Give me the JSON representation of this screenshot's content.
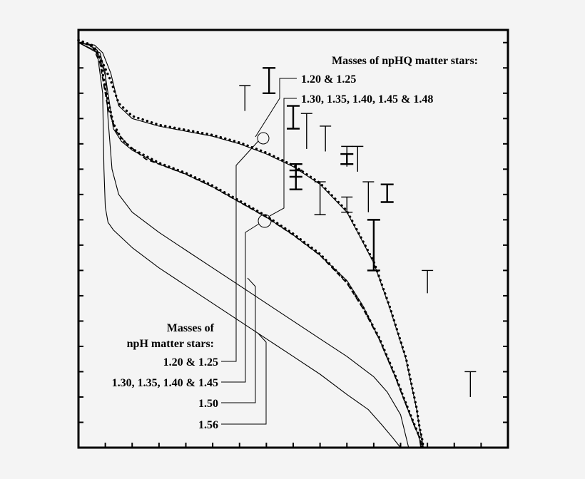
{
  "chart_data": {
    "type": "line",
    "title": "",
    "xlabel": "",
    "ylabel": "",
    "xlim": [
      0,
      16
    ],
    "ylim": [
      0,
      16.5
    ],
    "ticks": {
      "x": [
        1,
        2,
        3,
        4,
        5,
        6,
        7,
        8,
        9,
        10,
        11,
        12,
        13,
        14,
        15,
        16
      ],
      "y": [
        1,
        2,
        3,
        4,
        5,
        6,
        7,
        8,
        9,
        10,
        11,
        12,
        13,
        14,
        15,
        16
      ]
    },
    "grid": false,
    "legend": "none",
    "annotations": {
      "npHQ_title": "Masses of npHQ matter stars:",
      "npHQ_group_1": "1.20 & 1.25",
      "npHQ_group_2": "1.30, 1.35, 1.40, 1.45 & 1.48",
      "npH_title_line1": "Masses of",
      "npH_title_line2": "npH matter stars:",
      "npH_group_1": "1.20 & 1.25",
      "npH_group_2": "1.30, 1.35, 1.40 & 1.45",
      "npH_group_3": "1.50",
      "npH_group_4": "1.56"
    },
    "series": [
      {
        "style": "solid",
        "x": [
          0,
          0.6,
          0.9,
          1.2,
          1.5,
          2,
          3,
          4,
          5,
          6,
          7,
          8,
          9,
          10,
          11,
          11.6,
          12.2,
          12.4,
          12.6,
          12.7,
          12.8,
          12.85
        ],
        "y": [
          16,
          15.9,
          15.6,
          14.8,
          13.5,
          13,
          12.7,
          12.5,
          12.3,
          12.0,
          11.6,
          11.1,
          10.4,
          9.3,
          7.3,
          5.5,
          3.5,
          2.5,
          1.5,
          0.8,
          0.3,
          0
        ]
      },
      {
        "style": "dotted",
        "x": [
          0,
          0.6,
          0.9,
          1.2,
          1.5,
          2,
          3,
          4,
          5,
          6,
          7,
          8,
          9,
          10,
          11,
          11.6,
          12.2,
          12.4,
          12.6,
          12.7,
          12.8,
          12.85
        ],
        "y": [
          16.1,
          15.8,
          15.2,
          14.5,
          13.6,
          13.1,
          12.75,
          12.55,
          12.35,
          12.05,
          11.65,
          11.15,
          10.45,
          9.35,
          7.35,
          5.55,
          3.55,
          2.55,
          1.55,
          0.85,
          0.35,
          0
        ]
      },
      {
        "style": "dashed",
        "x": [
          0,
          0.5,
          0.8,
          1.1,
          1.4,
          1.8,
          2.5,
          3,
          4,
          5,
          6,
          7,
          8,
          9,
          10,
          10.6,
          11.2,
          11.8,
          12.2,
          12.5,
          12.7,
          12.8
        ],
        "y": [
          16,
          15.9,
          15.2,
          13.4,
          12.5,
          12.0,
          11.4,
          11.2,
          10.8,
          10.3,
          9.7,
          9.1,
          8.4,
          7.6,
          6.5,
          5.5,
          4.3,
          2.8,
          1.7,
          0.9,
          0.4,
          0
        ]
      },
      {
        "style": "dotted",
        "x": [
          0,
          0.5,
          0.8,
          1.0,
          1.3,
          1.6,
          2,
          3,
          4,
          5,
          6,
          7,
          8,
          9,
          10,
          10.6,
          11.2,
          11.8,
          12.2,
          12.5,
          12.7,
          12.8
        ],
        "y": [
          16.1,
          15.9,
          15.4,
          14.2,
          12.8,
          12.2,
          11.8,
          11.25,
          10.85,
          10.35,
          9.75,
          9.15,
          8.45,
          7.65,
          6.55,
          5.55,
          4.35,
          2.85,
          1.75,
          0.95,
          0.45,
          0
        ]
      },
      {
        "style": "solid",
        "x": [
          0,
          0.4,
          0.7,
          1.0,
          1.3,
          1.6,
          2,
          3,
          4,
          5,
          6,
          7,
          8,
          9,
          10,
          10.6,
          11.2,
          11.8,
          12.2,
          12.5,
          12.7,
          12.75
        ],
        "y": [
          16.0,
          15.9,
          15.7,
          14.7,
          12.6,
          12.1,
          11.75,
          11.2,
          10.8,
          10.3,
          9.7,
          9.1,
          8.4,
          7.6,
          6.6,
          5.6,
          4.3,
          2.8,
          1.7,
          0.9,
          0.4,
          0
        ]
      },
      {
        "style": "solid",
        "x": [
          0,
          0.8,
          1.0,
          1.1,
          1.25,
          1.5,
          2,
          3,
          4,
          5,
          6,
          7,
          8,
          9,
          10,
          11,
          11.5,
          12,
          12.3
        ],
        "y": [
          16.0,
          15.6,
          14.8,
          13.0,
          11.0,
          10.0,
          9.3,
          8.5,
          7.8,
          7.1,
          6.4,
          5.7,
          5.0,
          4.3,
          3.6,
          2.8,
          2.2,
          1.3,
          0
        ]
      },
      {
        "style": "solid",
        "x": [
          0,
          0.7,
          0.9,
          0.95,
          1.0,
          1.1,
          1.3,
          2,
          3,
          4,
          5,
          6,
          7,
          8,
          9,
          10,
          10.8,
          11.3,
          11.7,
          12.0
        ],
        "y": [
          16.0,
          15.6,
          14.0,
          11.0,
          9.5,
          8.9,
          8.6,
          7.9,
          7.1,
          6.4,
          5.7,
          5.0,
          4.3,
          3.6,
          2.9,
          2.1,
          1.5,
          0.9,
          0.4,
          0
        ]
      }
    ],
    "error_bars": [
      {
        "x": 6.2,
        "y_low": 13.3,
        "y_high": 14.3,
        "cap": "top"
      },
      {
        "x": 7.1,
        "y_low": 14.0,
        "y_high": 15.0,
        "cap": "both",
        "bold": true
      },
      {
        "x": 8.0,
        "y_low": 12.6,
        "y_high": 13.5,
        "cap": "both",
        "bold": true
      },
      {
        "x": 8.5,
        "y_low": 11.8,
        "y_high": 13.2,
        "cap": "top"
      },
      {
        "x": 9.2,
        "y_low": 11.7,
        "y_high": 12.7,
        "cap": "top"
      },
      {
        "x": 10.0,
        "y_low": 11.1,
        "y_high": 11.9,
        "cap": "top"
      },
      {
        "x": 10.4,
        "y_low": 10.9,
        "y_high": 11.9,
        "cap": "top"
      },
      {
        "x": 10.0,
        "y_low": 11.2,
        "y_high": 11.6,
        "cap": "both",
        "bold": true
      },
      {
        "x": 8.1,
        "y_low": 10.2,
        "y_high": 11.2,
        "cap": "both",
        "bold": true
      },
      {
        "x": 8.1,
        "y_low": 10.7,
        "y_high": 10.95,
        "cap": "both",
        "bold": true
      },
      {
        "x": 9.0,
        "y_low": 9.2,
        "y_high": 10.5,
        "cap": "both"
      },
      {
        "x": 10.0,
        "y_low": 9.3,
        "y_high": 9.9,
        "cap": "both"
      },
      {
        "x": 10.8,
        "y_low": 9.3,
        "y_high": 10.5,
        "cap": "top"
      },
      {
        "x": 11.5,
        "y_low": 9.7,
        "y_high": 10.4,
        "cap": "both",
        "bold": true
      },
      {
        "x": 11.0,
        "y_low": 7.0,
        "y_high": 9.0,
        "cap": "both",
        "bold": true
      },
      {
        "x": 13.0,
        "y_low": 6.1,
        "y_high": 7.0,
        "cap": "top"
      },
      {
        "x": 14.6,
        "y_low": 2.0,
        "y_high": 3.0,
        "cap": "top"
      }
    ]
  }
}
